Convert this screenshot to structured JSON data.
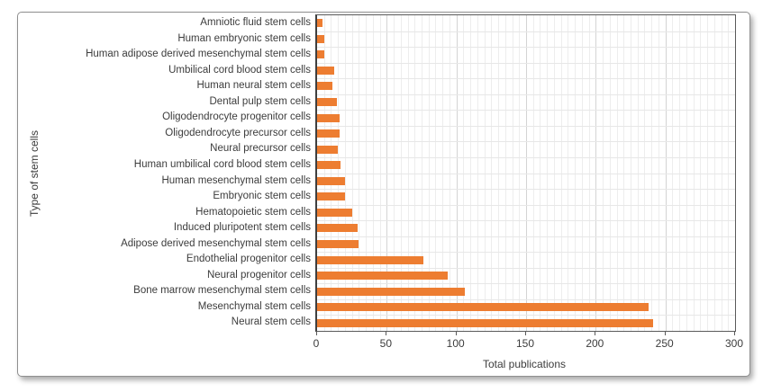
{
  "chart_data": {
    "type": "bar",
    "orientation": "horizontal",
    "xlabel": "Total publications",
    "ylabel": "Type of stem cells",
    "xlim": [
      0,
      300
    ],
    "x_ticks": [
      0,
      50,
      100,
      150,
      200,
      250,
      300
    ],
    "minor_grid_step": 5,
    "major_grid_step": 50,
    "grid": "on",
    "legend": "none",
    "bar_color": "#ED7D31",
    "categories": [
      "Amniotic fluid stem cells",
      "Human embryonic stem cells",
      "Human adipose derived mesenchymal stem cells",
      "Umbilical cord blood stem cells",
      "Human neural stem cells",
      "Dental pulp stem cells",
      "Oligodendrocyte progenitor cells",
      "Oligodendrocyte precursor cells",
      "Neural precursor cells",
      "Human umbilical cord blood stem cells",
      "Human mesenchymal stem cells",
      "Embryonic stem cells",
      "Hematopoietic stem cells",
      "Induced pluripotent stem cells",
      "Adipose derived mesenchymal stem cells",
      "Endothelial progenitor cells",
      "Neural progenitor cells",
      "Bone marrow mesenchymal stem cells",
      "Mesenchymal stem cells",
      "Neural stem cells"
    ],
    "values": [
      4,
      5,
      5,
      12,
      11,
      14,
      16,
      16,
      15,
      17,
      20,
      20,
      25,
      29,
      30,
      76,
      94,
      106,
      238,
      241
    ]
  }
}
